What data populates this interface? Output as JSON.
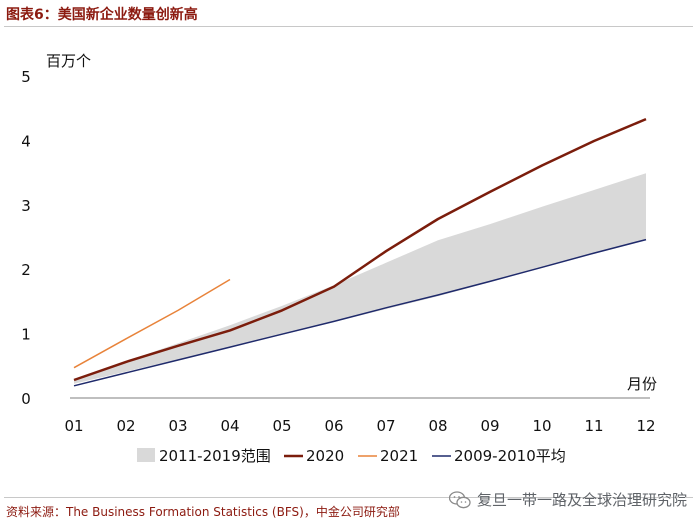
{
  "header": {
    "title": "图表6：美国新企业数量创新高"
  },
  "footer": {
    "source": "资料来源：The Business Formation Statistics (BFS)，中金公司研究部",
    "watermark": "复旦一带一路及全球治理研究院"
  },
  "colors": {
    "title": "#8c1a10",
    "band": "#d9d9d9",
    "s2020": "#7b1d0c",
    "s2021": "#e8833a",
    "s2009": "#1f2a6b"
  },
  "chart_data": {
    "type": "line",
    "title": "美国新企业数量创新高",
    "ylabel": "百万个",
    "xlabel": "月份",
    "ylim": [
      0,
      5
    ],
    "yticks": [
      "0",
      "1",
      "2",
      "3",
      "4",
      "5"
    ],
    "categories": [
      "01",
      "02",
      "03",
      "04",
      "05",
      "06",
      "07",
      "08",
      "09",
      "10",
      "11",
      "12"
    ],
    "band": {
      "name": "2011-2019范围",
      "lower": [
        0.22,
        0.41,
        0.6,
        0.79,
        0.98,
        1.18,
        1.38,
        1.58,
        1.8,
        2.02,
        2.24,
        2.46
      ],
      "upper": [
        0.3,
        0.57,
        0.85,
        1.13,
        1.43,
        1.75,
        2.1,
        2.45,
        2.7,
        2.97,
        3.23,
        3.49
      ]
    },
    "series": [
      {
        "name": "2020",
        "values": [
          0.28,
          0.56,
          0.81,
          1.05,
          1.36,
          1.73,
          2.28,
          2.78,
          3.2,
          3.61,
          3.99,
          4.33
        ]
      },
      {
        "name": "2021",
        "values": [
          0.47,
          0.92,
          1.36,
          1.84,
          null,
          null,
          null,
          null,
          null,
          null,
          null,
          null
        ]
      },
      {
        "name": "2009-2010平均",
        "values": [
          0.19,
          0.39,
          0.59,
          0.79,
          0.99,
          1.19,
          1.4,
          1.6,
          1.81,
          2.03,
          2.25,
          2.46
        ]
      }
    ]
  }
}
